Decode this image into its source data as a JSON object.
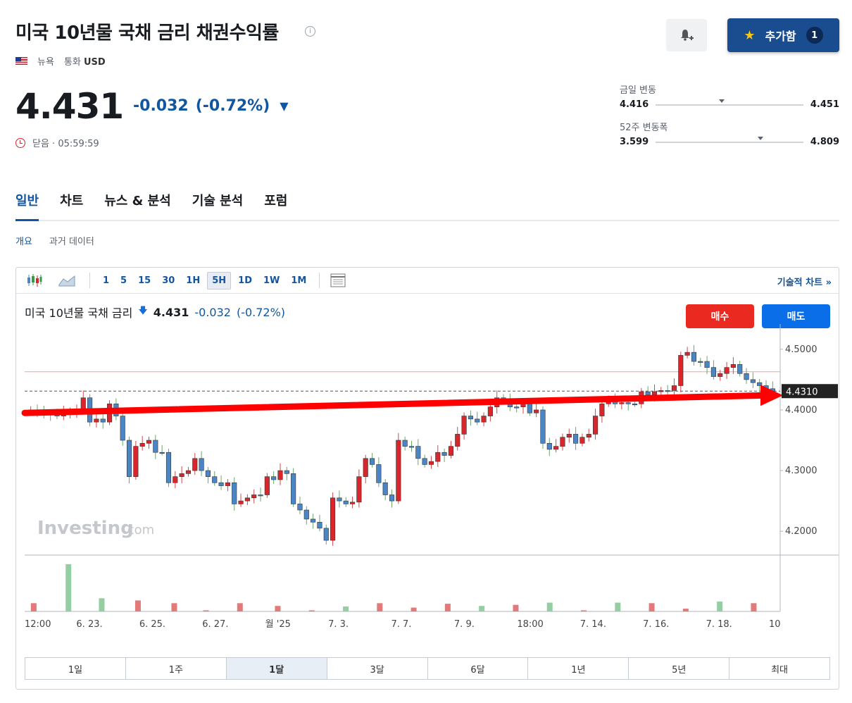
{
  "header": {
    "title": "미국 10년물 국채 금리 채권수익률",
    "info_icon_glyph": "i",
    "location": "뉴욕",
    "currency_label": "통화",
    "currency": "USD",
    "add_button_label": "추가함",
    "add_button_count": "1"
  },
  "quote": {
    "price": "4.431",
    "change": "-0.032",
    "change_pct": "(-0.72%)",
    "status": "닫음 · 05:59:59"
  },
  "ranges": {
    "day_label": "금일 변동",
    "day_low": "4.416",
    "day_high": "4.451",
    "day_position": 0.43,
    "week52_label": "52주 변동폭",
    "week52_low": "3.599",
    "week52_high": "4.809",
    "week52_position": 0.69
  },
  "tabs": [
    "일반",
    "차트",
    "뉴스 & 분석",
    "기술 분석",
    "포럼"
  ],
  "subtabs": [
    "개요",
    "과거 데이터"
  ],
  "toolbar": {
    "intervals": [
      "1",
      "5",
      "15",
      "30",
      "1H",
      "5H",
      "1D",
      "1W",
      "1M"
    ],
    "selected_interval": "5H",
    "tech_chart_link": "기술적 차트 »"
  },
  "chart_header": {
    "name": "미국 10년물 국채 금리",
    "price": "4.431",
    "change": "-0.032",
    "change_pct": "(-0.72%)",
    "buy_label": "매수",
    "sell_label": "매도"
  },
  "watermark": {
    "brand": "Investing",
    "suffix": ".com"
  },
  "colors": {
    "up": "#d9262c",
    "down": "#4a86c5",
    "accent": "#1256a0",
    "buy": "#ea2a20",
    "sell": "#0b6ee9",
    "arrow": "#ff0000"
  },
  "periods": [
    "1일",
    "1주",
    "1달",
    "3달",
    "6달",
    "1년",
    "5년",
    "최대"
  ],
  "selected_period": "1달",
  "chart_data": {
    "type": "candlestick",
    "x_tick_labels": [
      "12:00",
      "6. 23.",
      "6. 25.",
      "6. 27.",
      "월 '25",
      "7. 3.",
      "7. 7.",
      "7. 9.",
      "18:00",
      "7. 14.",
      "7. 16.",
      "7. 18.",
      "10"
    ],
    "y_tick_labels": [
      "4.5000",
      "4.4000",
      "4.3000",
      "4.2000"
    ],
    "ylim": [
      4.17,
      4.53
    ],
    "current_price_label": "4.4310",
    "current_price": 4.431,
    "reference_line": 4.463,
    "closes": [
      4.4,
      4.395,
      4.395,
      4.393,
      4.39,
      4.395,
      4.398,
      4.4,
      4.42,
      4.38,
      4.385,
      4.38,
      4.41,
      4.39,
      4.35,
      4.29,
      4.34,
      4.345,
      4.35,
      4.33,
      4.33,
      4.28,
      4.29,
      4.295,
      4.3,
      4.32,
      4.3,
      4.29,
      4.28,
      4.275,
      4.28,
      4.245,
      4.25,
      4.255,
      4.26,
      4.26,
      4.29,
      4.285,
      4.3,
      4.295,
      4.245,
      4.235,
      4.22,
      4.215,
      4.205,
      4.185,
      4.255,
      4.25,
      4.245,
      4.248,
      4.29,
      4.32,
      4.31,
      4.28,
      4.26,
      4.25,
      4.35,
      4.34,
      4.34,
      4.32,
      4.31,
      4.315,
      4.33,
      4.325,
      4.34,
      4.36,
      4.39,
      4.385,
      4.38,
      4.39,
      4.405,
      4.42,
      4.418,
      4.405,
      4.405,
      4.41,
      4.395,
      4.4,
      4.345,
      4.335,
      4.34,
      4.355,
      4.36,
      4.345,
      4.355,
      4.36,
      4.39,
      4.41,
      4.415,
      4.41,
      4.412,
      4.41,
      4.41,
      4.43,
      4.425,
      4.43,
      4.432,
      4.432,
      4.44,
      4.49,
      4.495,
      4.48,
      4.48,
      4.47,
      4.455,
      4.46,
      4.47,
      4.475,
      4.46,
      4.45,
      4.445,
      4.44,
      4.435,
      4.431
    ],
    "volume_bars": [
      {
        "x_pos": 0.012,
        "v": 0.15,
        "dir": "up"
      },
      {
        "x_pos": 0.058,
        "v": 0.86,
        "dir": "down"
      },
      {
        "x_pos": 0.102,
        "v": 0.24,
        "dir": "down"
      },
      {
        "x_pos": 0.15,
        "v": 0.2,
        "dir": "up"
      },
      {
        "x_pos": 0.198,
        "v": 0.15,
        "dir": "up"
      },
      {
        "x_pos": 0.24,
        "v": 0.02,
        "dir": "up"
      },
      {
        "x_pos": 0.285,
        "v": 0.15,
        "dir": "up"
      },
      {
        "x_pos": 0.335,
        "v": 0.1,
        "dir": "up"
      },
      {
        "x_pos": 0.38,
        "v": 0.02,
        "dir": "up"
      },
      {
        "x_pos": 0.425,
        "v": 0.09,
        "dir": "down"
      },
      {
        "x_pos": 0.47,
        "v": 0.15,
        "dir": "up"
      },
      {
        "x_pos": 0.515,
        "v": 0.07,
        "dir": "up"
      },
      {
        "x_pos": 0.56,
        "v": 0.14,
        "dir": "up"
      },
      {
        "x_pos": 0.605,
        "v": 0.1,
        "dir": "down"
      },
      {
        "x_pos": 0.65,
        "v": 0.12,
        "dir": "up"
      },
      {
        "x_pos": 0.695,
        "v": 0.16,
        "dir": "down"
      },
      {
        "x_pos": 0.74,
        "v": 0.02,
        "dir": "up"
      },
      {
        "x_pos": 0.785,
        "v": 0.16,
        "dir": "down"
      },
      {
        "x_pos": 0.83,
        "v": 0.15,
        "dir": "up"
      },
      {
        "x_pos": 0.875,
        "v": 0.05,
        "dir": "up"
      },
      {
        "x_pos": 0.92,
        "v": 0.18,
        "dir": "down"
      },
      {
        "x_pos": 0.965,
        "v": 0.15,
        "dir": "up"
      }
    ],
    "trend_arrow": {
      "y_start": 4.395,
      "y_end": 4.424
    }
  }
}
